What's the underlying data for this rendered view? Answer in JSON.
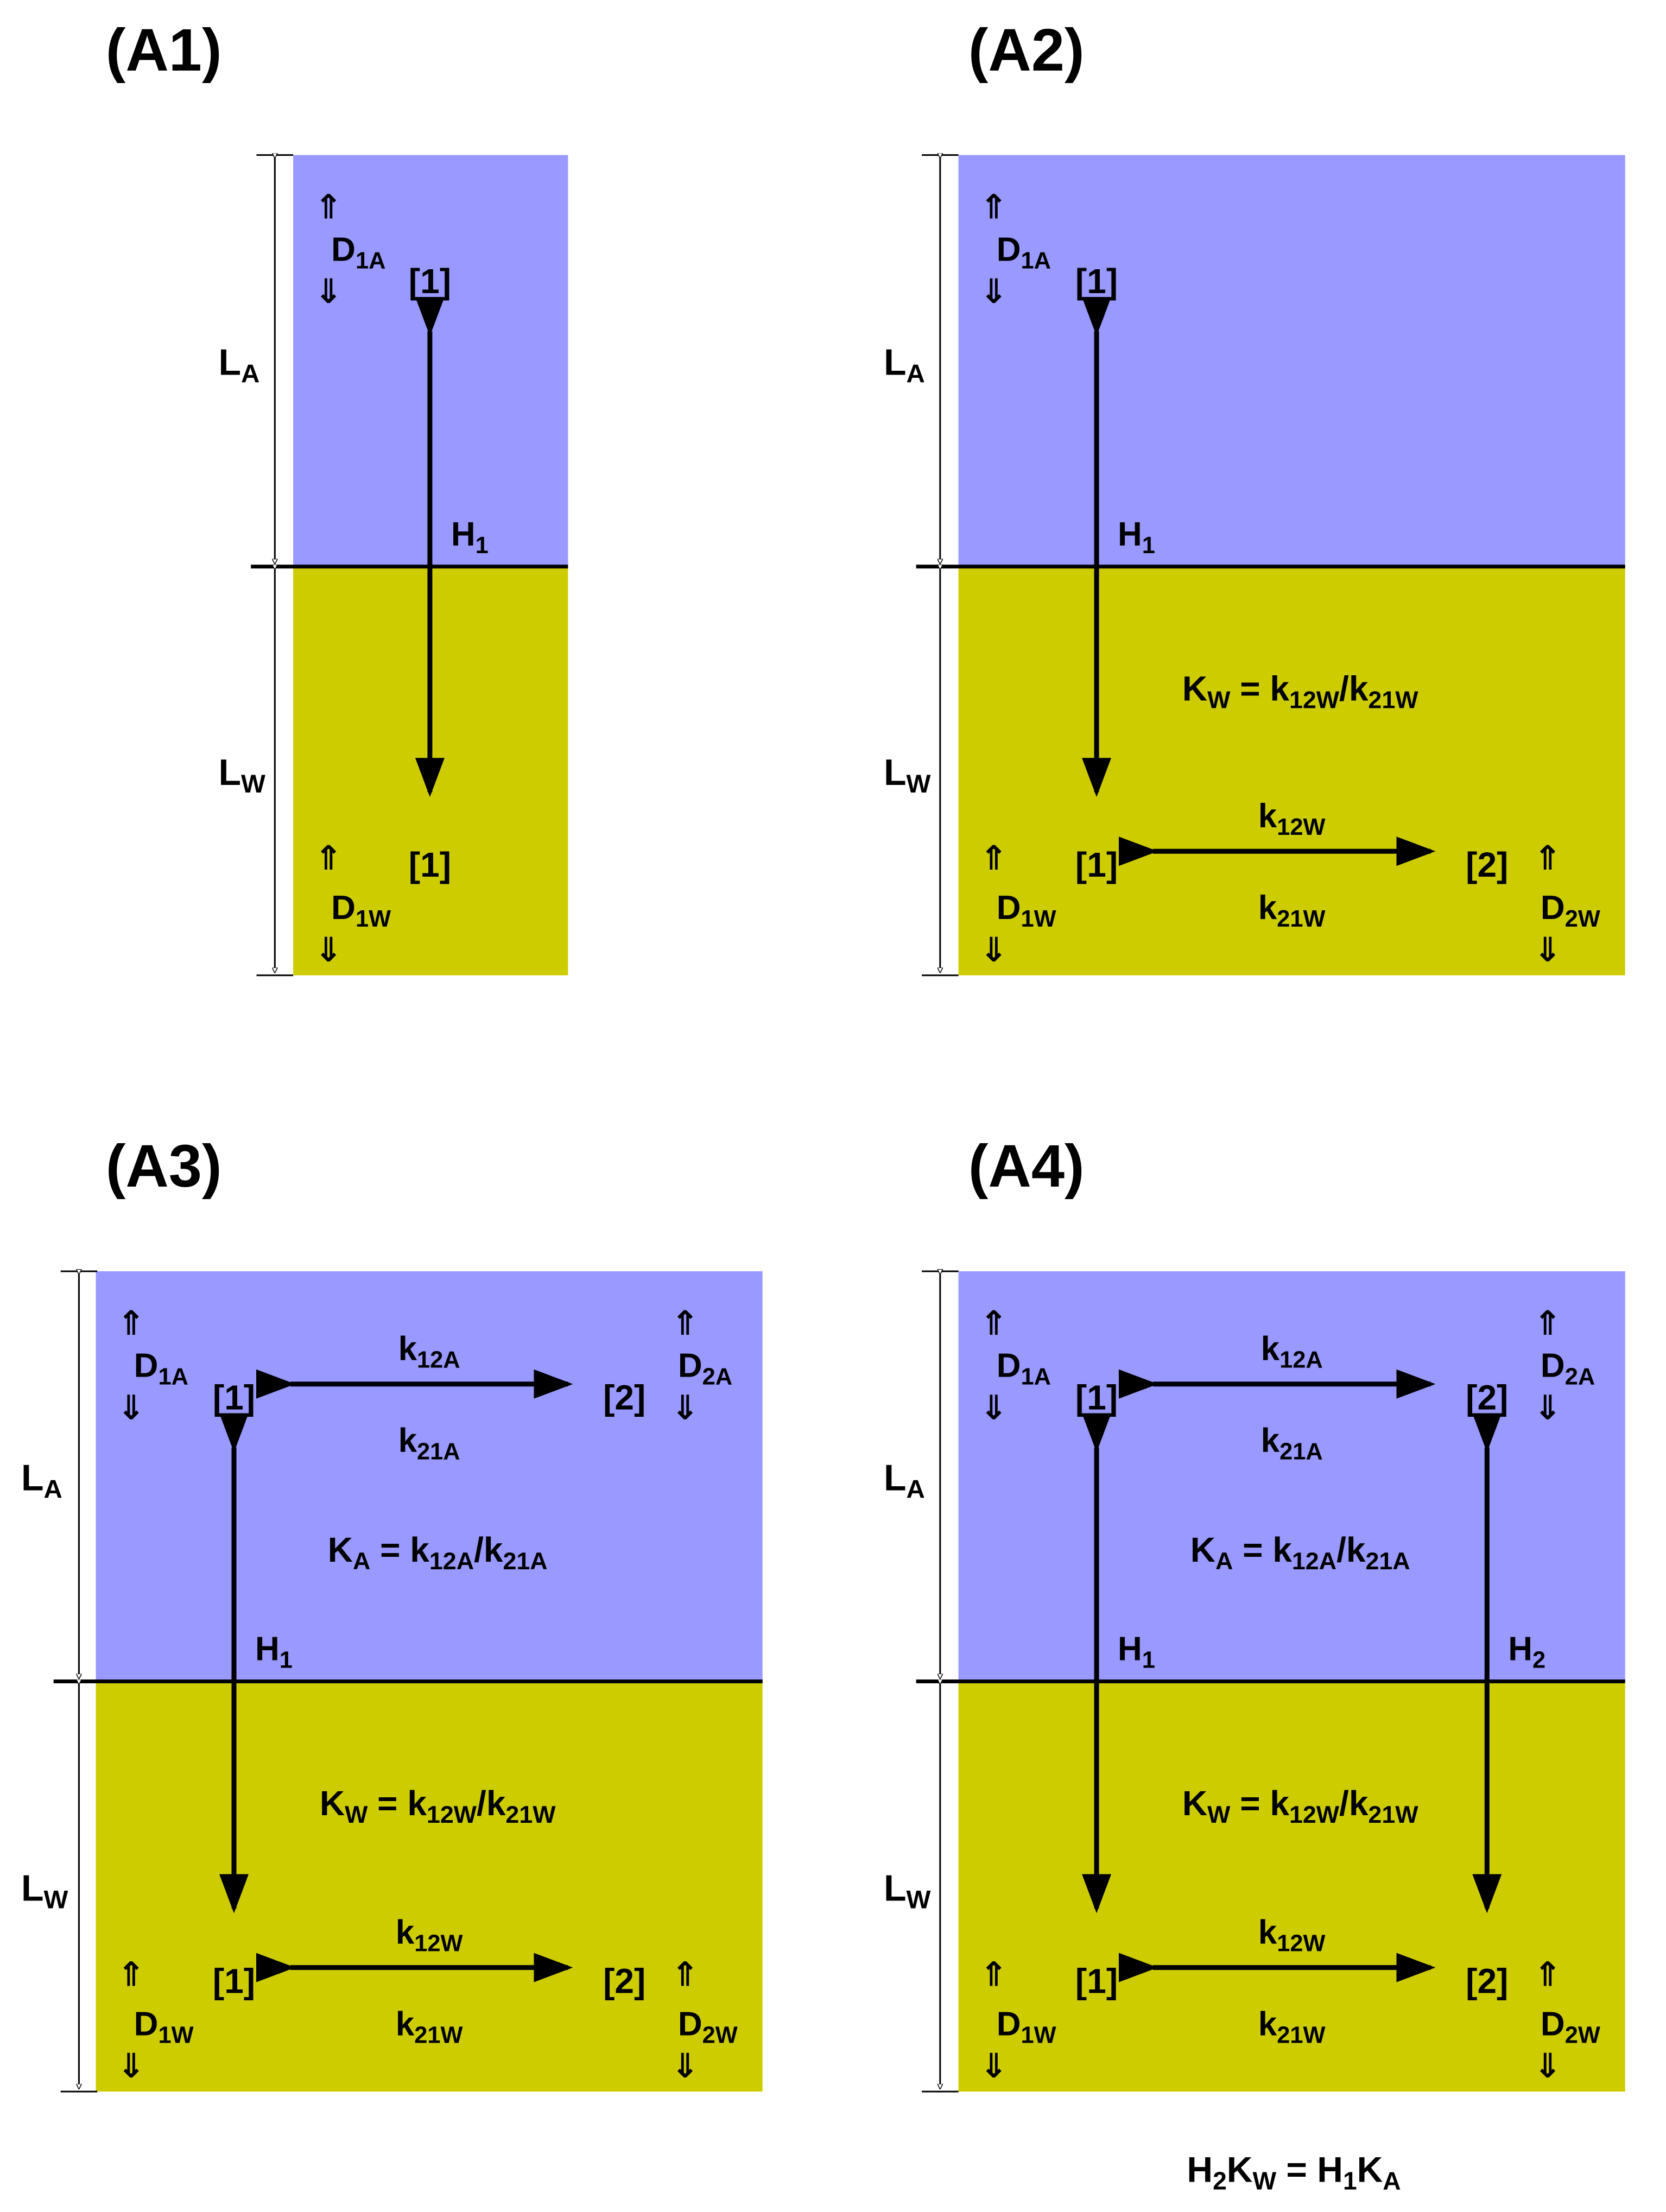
{
  "colors": {
    "air": "#9999ff",
    "water": "#cccc00",
    "line": "#000000"
  },
  "panels": [
    {
      "id": "A1",
      "title": "(A1)",
      "air_top_label": "D1A",
      "dim_upper": {
        "main": "L",
        "sub": "A"
      },
      "dim_lower": {
        "main": "L",
        "sub": "W"
      },
      "air_species": [
        "[1]"
      ],
      "water_species": [
        "[1]"
      ],
      "diffusion": [
        {
          "main": "D",
          "sub": "1A"
        },
        {
          "main": "D",
          "sub": "1W"
        }
      ],
      "transfer": [
        {
          "main": "H",
          "sub": "1"
        }
      ]
    },
    {
      "id": "A2",
      "title": "(A2)",
      "dim_upper": {
        "main": "L",
        "sub": "A"
      },
      "dim_lower": {
        "main": "L",
        "sub": "W"
      },
      "air_species": [
        "[1]"
      ],
      "water_species": [
        "[1]",
        "[2]"
      ],
      "diffusion": [
        {
          "main": "D",
          "sub": "1A"
        },
        {
          "main": "D",
          "sub": "1W"
        },
        {
          "main": "D",
          "sub": "2W"
        }
      ],
      "transfer": [
        {
          "main": "H",
          "sub": "1"
        }
      ],
      "water_rates": {
        "fwd": {
          "main": "k",
          "sub": "12W"
        },
        "rev": {
          "main": "k",
          "sub": "21W"
        }
      },
      "water_eq": {
        "K": "K",
        "Ksub": "W",
        "eq": " = ",
        "k1": "k",
        "k1sub": "12W",
        "slash": "/",
        "k2": "k",
        "k2sub": "21W"
      }
    },
    {
      "id": "A3",
      "title": "(A3)",
      "dim_upper": {
        "main": "L",
        "sub": "A"
      },
      "dim_lower": {
        "main": "L",
        "sub": "W"
      },
      "air_species": [
        "[1]",
        "[2]"
      ],
      "water_species": [
        "[1]",
        "[2]"
      ],
      "diffusion": [
        {
          "main": "D",
          "sub": "1A"
        },
        {
          "main": "D",
          "sub": "2A"
        },
        {
          "main": "D",
          "sub": "1W"
        },
        {
          "main": "D",
          "sub": "2W"
        }
      ],
      "transfer": [
        {
          "main": "H",
          "sub": "1"
        }
      ],
      "air_rates": {
        "fwd": {
          "main": "k",
          "sub": "12A"
        },
        "rev": {
          "main": "k",
          "sub": "21A"
        }
      },
      "water_rates": {
        "fwd": {
          "main": "k",
          "sub": "12W"
        },
        "rev": {
          "main": "k",
          "sub": "21W"
        }
      },
      "air_eq": {
        "K": "K",
        "Ksub": "A",
        "eq": " = ",
        "k1": "k",
        "k1sub": "12A",
        "slash": "/",
        "k2": "k",
        "k2sub": "21A"
      },
      "water_eq": {
        "K": "K",
        "Ksub": "W",
        "eq": " = ",
        "k1": "k",
        "k1sub": "12W",
        "slash": "/",
        "k2": "k",
        "k2sub": "21W"
      }
    },
    {
      "id": "A4",
      "title": "(A4)",
      "dim_upper": {
        "main": "L",
        "sub": "A"
      },
      "dim_lower": {
        "main": "L",
        "sub": "W"
      },
      "air_species": [
        "[1]",
        "[2]"
      ],
      "water_species": [
        "[1]",
        "[2]"
      ],
      "diffusion": [
        {
          "main": "D",
          "sub": "1A"
        },
        {
          "main": "D",
          "sub": "2A"
        },
        {
          "main": "D",
          "sub": "1W"
        },
        {
          "main": "D",
          "sub": "2W"
        }
      ],
      "transfer": [
        {
          "main": "H",
          "sub": "1"
        },
        {
          "main": "H",
          "sub": "2"
        }
      ],
      "air_rates": {
        "fwd": {
          "main": "k",
          "sub": "12A"
        },
        "rev": {
          "main": "k",
          "sub": "21A"
        }
      },
      "water_rates": {
        "fwd": {
          "main": "k",
          "sub": "12W"
        },
        "rev": {
          "main": "k",
          "sub": "21W"
        }
      },
      "air_eq": {
        "K": "K",
        "Ksub": "A",
        "eq": " = ",
        "k1": "k",
        "k1sub": "12A",
        "slash": "/",
        "k2": "k",
        "k2sub": "21A"
      },
      "water_eq": {
        "K": "K",
        "Ksub": "W",
        "eq": " = ",
        "k1": "k",
        "k1sub": "12W",
        "slash": "/",
        "k2": "k",
        "k2sub": "21W"
      },
      "footer": {
        "a": "H",
        "asub": "2",
        "b": "K",
        "bsub": "W",
        "eq": " = ",
        "c": "H",
        "csub": "1",
        "d": "K",
        "dsub": "A"
      }
    }
  ]
}
